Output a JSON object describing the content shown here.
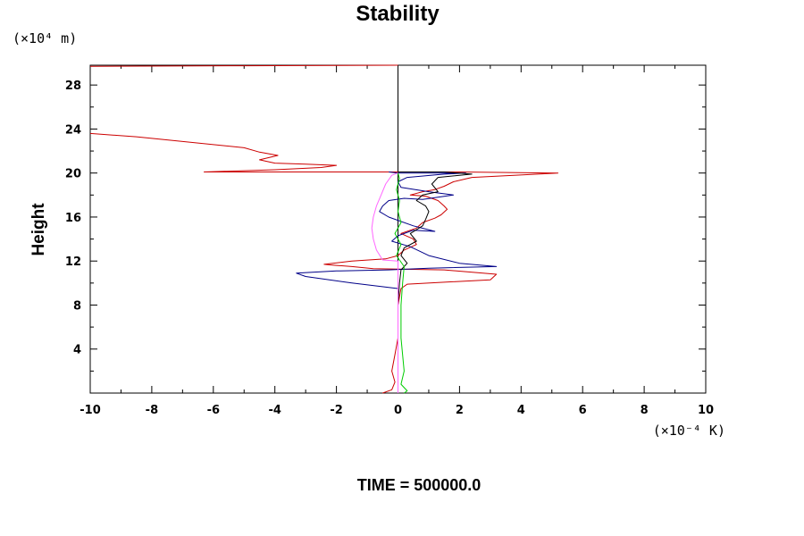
{
  "chart_data": {
    "type": "line",
    "title": "Stability",
    "ylabel": "Height",
    "y_unit_label": "(×10⁴ m)",
    "x_unit_label": "(×10⁻⁴ K)",
    "footer": "TIME = 500000.0",
    "xlim": [
      -10,
      10
    ],
    "ylim": [
      0,
      29.8
    ],
    "x_ticks": [
      -10,
      -8,
      -6,
      -4,
      -2,
      0,
      2,
      4,
      6,
      8,
      10
    ],
    "x_tick_labels": [
      "-10",
      "-8",
      "-6",
      "-4",
      "-2",
      "0",
      "2",
      "4",
      "6",
      "8",
      "10"
    ],
    "y_ticks": [
      4,
      8,
      12,
      16,
      20,
      24,
      28
    ],
    "y_tick_labels": [
      "4",
      "8",
      "12",
      "16",
      "20",
      "24",
      "28"
    ],
    "grid": false,
    "series": [
      {
        "color": "#cc0000",
        "points": [
          [
            -0.5,
            0
          ],
          [
            -0.2,
            0.3
          ],
          [
            -0.1,
            1
          ],
          [
            -0.2,
            2
          ],
          [
            -0.1,
            3.5
          ],
          [
            0,
            5
          ],
          [
            0,
            8
          ],
          [
            0.1,
            9.5
          ],
          [
            0.3,
            9.9
          ],
          [
            3,
            10.3
          ],
          [
            3.2,
            10.8
          ],
          [
            1.5,
            11.2
          ],
          [
            -0.8,
            11.3
          ],
          [
            -1.5,
            11.5
          ],
          [
            -2,
            11.6
          ],
          [
            -2.4,
            11.7
          ],
          [
            -1.5,
            12
          ],
          [
            -0.4,
            12.2
          ],
          [
            0,
            12.5
          ],
          [
            0.2,
            13
          ],
          [
            0.6,
            13.5
          ],
          [
            0.5,
            14
          ],
          [
            0.1,
            14.5
          ],
          [
            0.6,
            15
          ],
          [
            0.8,
            15.5
          ],
          [
            1.2,
            15.9
          ],
          [
            1.4,
            16.2
          ],
          [
            1.6,
            16.7
          ],
          [
            1.5,
            17
          ],
          [
            1.3,
            17.5
          ],
          [
            0.9,
            17.9
          ],
          [
            0.4,
            18
          ],
          [
            0.8,
            18.3
          ],
          [
            1.2,
            18.5
          ],
          [
            1.5,
            18.8
          ],
          [
            1.8,
            19.2
          ],
          [
            2.4,
            19.6
          ],
          [
            5.2,
            20
          ],
          [
            2,
            20.1
          ],
          [
            0,
            20.1
          ],
          [
            -6.3,
            20.1
          ],
          [
            -4,
            20.3
          ],
          [
            -2.5,
            20.5
          ],
          [
            -2,
            20.7
          ],
          [
            -3,
            20.8
          ],
          [
            -4,
            20.9
          ],
          [
            -4.5,
            21.2
          ],
          [
            -3.9,
            21.6
          ],
          [
            -4.5,
            21.9
          ],
          [
            -5,
            22.3
          ],
          [
            -8.5,
            23.3
          ],
          [
            -10,
            23.6
          ]
        ]
      },
      {
        "color": "#cc0000",
        "points": [
          [
            -10,
            29.7
          ],
          [
            -5,
            29.75
          ],
          [
            0,
            29.8
          ]
        ]
      },
      {
        "color": "#000088",
        "points": [
          [
            0,
            0
          ],
          [
            0,
            8
          ],
          [
            0,
            9.5
          ],
          [
            -1.5,
            10
          ],
          [
            -3,
            10.6
          ],
          [
            -3.3,
            10.9
          ],
          [
            -2,
            11.1
          ],
          [
            -0.3,
            11.2
          ],
          [
            1,
            11.35
          ],
          [
            3.2,
            11.5
          ],
          [
            2,
            11.8
          ],
          [
            1,
            12.5
          ],
          [
            0.4,
            13.3
          ],
          [
            -0.2,
            13.8
          ],
          [
            0,
            14.3
          ],
          [
            0.5,
            14.8
          ],
          [
            1.2,
            14.7
          ],
          [
            0.5,
            15.2
          ],
          [
            -0.3,
            16
          ],
          [
            -0.6,
            16.5
          ],
          [
            -0.5,
            17
          ],
          [
            -0.3,
            17.5
          ],
          [
            0.2,
            17.7
          ],
          [
            0.8,
            17.6
          ],
          [
            1.3,
            17.8
          ],
          [
            1.8,
            18
          ],
          [
            1,
            18.3
          ],
          [
            0.1,
            18.7
          ],
          [
            0,
            19.2
          ],
          [
            0.3,
            19.6
          ],
          [
            1.5,
            19.9
          ],
          [
            2.2,
            20
          ],
          [
            0,
            20
          ],
          [
            -0.3,
            20.1
          ]
        ]
      },
      {
        "color": "#000000",
        "points": [
          [
            0,
            0
          ],
          [
            0,
            8
          ],
          [
            0.05,
            10
          ],
          [
            0.1,
            11.2
          ],
          [
            0.3,
            11.8
          ],
          [
            0.1,
            12.5
          ],
          [
            0.2,
            13.2
          ],
          [
            0.6,
            13.8
          ],
          [
            0.4,
            14.5
          ],
          [
            0.8,
            15.2
          ],
          [
            0.9,
            15.8
          ],
          [
            1,
            16.5
          ],
          [
            0.9,
            17
          ],
          [
            0.6,
            17.5
          ],
          [
            0.8,
            18
          ],
          [
            1.3,
            18.3
          ],
          [
            1.1,
            19
          ],
          [
            1.3,
            19.6
          ],
          [
            2.4,
            19.9
          ],
          [
            1.5,
            20.1
          ],
          [
            0,
            20.1
          ]
        ]
      },
      {
        "color": "#ff66ff",
        "points": [
          [
            0,
            0
          ],
          [
            0,
            12
          ],
          [
            -0.5,
            12.1
          ],
          [
            -0.7,
            13
          ],
          [
            -0.8,
            14
          ],
          [
            -0.85,
            15
          ],
          [
            -0.8,
            16
          ],
          [
            -0.7,
            17
          ],
          [
            -0.55,
            18
          ],
          [
            -0.4,
            19
          ],
          [
            -0.2,
            19.8
          ],
          [
            0,
            20
          ]
        ]
      },
      {
        "color": "#00cc00",
        "points": [
          [
            0.2,
            0
          ],
          [
            0.3,
            0.2
          ],
          [
            0.1,
            0.8
          ],
          [
            0.2,
            2
          ],
          [
            0.1,
            5
          ],
          [
            0.1,
            8
          ],
          [
            0.15,
            10
          ],
          [
            0.2,
            11.5
          ],
          [
            -0.05,
            12.5
          ],
          [
            0.1,
            13.5
          ],
          [
            -0.1,
            14.5
          ],
          [
            0.1,
            15.5
          ],
          [
            0,
            16.5
          ],
          [
            0.05,
            17.5
          ],
          [
            -0.05,
            18.5
          ],
          [
            0.05,
            19.5
          ],
          [
            0,
            20
          ]
        ]
      }
    ]
  }
}
